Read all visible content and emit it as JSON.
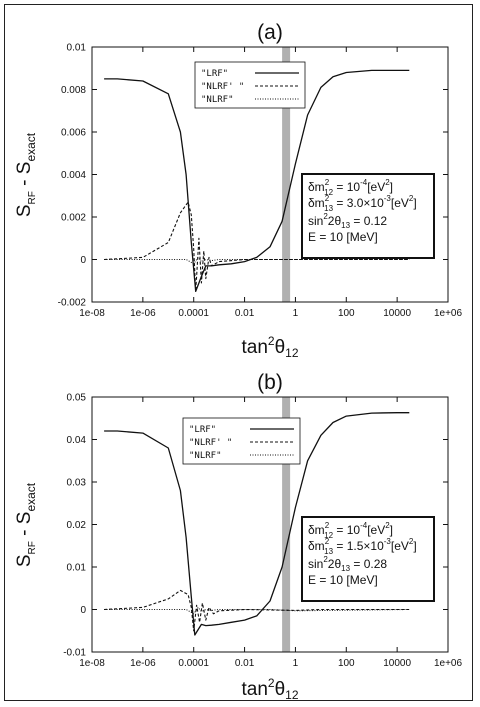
{
  "chart_data": [
    {
      "type": "line",
      "title": "(a)",
      "xlabel_main": "tan",
      "xlabel_sup": "2",
      "xlabel_theta": "θ",
      "xlabel_sub": "12",
      "ylabel_main": "S",
      "ylabel_sub1": "RF",
      "ylabel_mid": " - S",
      "ylabel_sub2": "exact",
      "xscale": "log",
      "xlim": [
        1e-08,
        1000000.0
      ],
      "ylim": [
        -0.002,
        0.01
      ],
      "xticks": [
        "1e-08",
        "1e-06",
        "0.0001",
        "0.01",
        "1",
        "100",
        "10000",
        "1e+06"
      ],
      "yticks": [
        "-0.002",
        "0",
        "0.002",
        "0.004",
        "0.006",
        "0.008",
        "0.01"
      ],
      "legend_position": "top-center",
      "vband_x": 0.43,
      "series": [
        {
          "name": "\"LRF\"",
          "style": "solid",
          "x": [
            3e-08,
            1e-07,
            1e-06,
            1e-05,
            3e-05,
            5e-05,
            8e-05,
            0.00012,
            0.0002,
            0.0003,
            0.0005,
            0.001,
            0.003,
            0.01,
            0.03,
            0.1,
            0.3,
            1,
            3,
            10,
            30,
            100,
            1000,
            10000,
            30000
          ],
          "y": [
            0.0085,
            0.0085,
            0.0084,
            0.0078,
            0.006,
            0.004,
            0.0008,
            -0.0015,
            -0.0008,
            -0.0003,
            -0.0003,
            -0.00025,
            -0.0002,
            -0.0001,
            0.0001,
            0.0006,
            0.0018,
            0.0045,
            0.0068,
            0.0081,
            0.0086,
            0.0088,
            0.0089,
            0.0089,
            0.0089
          ]
        },
        {
          "name": "\"NLRF' \"",
          "style": "dashed",
          "x": [
            3e-08,
            1e-06,
            1e-05,
            3e-05,
            6e-05,
            8e-05,
            0.0001,
            0.00012,
            0.00016,
            0.0002,
            0.00025,
            0.0003,
            0.0004,
            0.0005,
            0.001,
            0.01,
            1,
            10,
            30000
          ],
          "y": [
            0.0,
            0.0001,
            0.0008,
            0.0022,
            0.0027,
            0.0021,
            0.0005,
            -0.0015,
            0.001,
            -0.0011,
            0.0004,
            -0.0009,
            0.0001,
            -0.0003,
            -0.0001,
            0.0,
            0.0,
            0.0,
            0.0
          ]
        },
        {
          "name": "\"NLRF\"",
          "style": "dotted",
          "x": [
            3e-08,
            1e-05,
            5e-05,
            0.0001,
            0.00015,
            0.0002,
            0.0003,
            0.0005,
            0.001,
            0.1,
            30000
          ],
          "y": [
            0.0,
            0.0,
            0.0,
            -0.0002,
            0.0001,
            -0.0001,
            0.0,
            -5e-05,
            0.0,
            0.0,
            0.0
          ]
        }
      ],
      "params": {
        "dm12_lhs": "δm",
        "dm12_sup": "2",
        "dm12_sub": "12",
        "dm12_rhs": " = 10",
        "dm12_exp": "-4",
        "dm12_unit": "[eV",
        "dm12_unit_sup": "2",
        "dm12_close": "]",
        "dm13_lhs": "δm",
        "dm13_sup": "2",
        "dm13_sub": "13",
        "dm13_rhs": " = 3.0×10",
        "dm13_exp": "-3",
        "dm13_unit": "[eV",
        "dm13_unit_sup": "2",
        "dm13_close": "]",
        "sin_lhs": "sin",
        "sin_sup": "2",
        "sin_mid": "2θ",
        "sin_sub": "13",
        "sin_rhs": " =  0.12",
        "energy": "E = 10 [MeV]"
      }
    },
    {
      "type": "line",
      "title": "(b)",
      "xlabel_main": "tan",
      "xlabel_sup": "2",
      "xlabel_theta": "θ",
      "xlabel_sub": "12",
      "ylabel_main": "S",
      "ylabel_sub1": "RF",
      "ylabel_mid": " - S",
      "ylabel_sub2": "exact",
      "xscale": "log",
      "xlim": [
        1e-08,
        1000000.0
      ],
      "ylim": [
        -0.01,
        0.05
      ],
      "xticks": [
        "1e-08",
        "1e-06",
        "0.0001",
        "0.01",
        "1",
        "100",
        "10000",
        "1e+06"
      ],
      "yticks": [
        "-0.01",
        "0",
        "0.01",
        "0.02",
        "0.03",
        "0.04",
        "0.05"
      ],
      "legend_position": "top-center",
      "vband_x": 0.43,
      "series": [
        {
          "name": "\"LRF\"",
          "style": "solid",
          "x": [
            3e-08,
            1e-07,
            1e-06,
            1e-05,
            3e-05,
            5e-05,
            8e-05,
            0.00011,
            0.0002,
            0.0003,
            0.0005,
            0.001,
            0.003,
            0.01,
            0.03,
            0.1,
            0.3,
            1,
            3,
            10,
            30,
            100,
            1000,
            10000,
            30000
          ],
          "y": [
            0.042,
            0.042,
            0.0415,
            0.038,
            0.028,
            0.017,
            0.003,
            -0.006,
            -0.0035,
            -0.0038,
            -0.0037,
            -0.0035,
            -0.003,
            -0.0025,
            -0.0015,
            0.002,
            0.01,
            0.024,
            0.035,
            0.041,
            0.044,
            0.0455,
            0.0462,
            0.0463,
            0.0463
          ]
        },
        {
          "name": "\"NLRF' \"",
          "style": "dashed",
          "x": [
            3e-08,
            1e-06,
            1e-05,
            3e-05,
            6e-05,
            8e-05,
            0.0001,
            0.00013,
            0.00017,
            0.00022,
            0.0003,
            0.0004,
            0.0006,
            0.001,
            0.01,
            1,
            10,
            30000
          ],
          "y": [
            0.0,
            0.0005,
            0.0025,
            0.0045,
            0.0035,
            0.0005,
            -0.005,
            0.001,
            -0.003,
            0.0015,
            -0.0025,
            0.0005,
            -0.001,
            -0.0003,
            0.0,
            -0.0002,
            0.0,
            0.0
          ]
        },
        {
          "name": "\"NLRF\"",
          "style": "dotted",
          "x": [
            3e-08,
            1e-05,
            5e-05,
            0.0001,
            0.00015,
            0.0002,
            0.0003,
            0.0005,
            0.001,
            0.1,
            1,
            30000
          ],
          "y": [
            0.0,
            0.0,
            0.0,
            -0.001,
            0.0005,
            -0.0005,
            0.0,
            -0.0002,
            0.0,
            0.0,
            -0.0003,
            0.0
          ]
        }
      ],
      "params": {
        "dm12_lhs": "δm",
        "dm12_sup": "2",
        "dm12_sub": "12",
        "dm12_rhs": " = 10",
        "dm12_exp": "-4",
        "dm12_unit": "[eV",
        "dm12_unit_sup": "2",
        "dm12_close": "]",
        "dm13_lhs": "δm",
        "dm13_sup": "2",
        "dm13_sub": "13",
        "dm13_rhs": " = 1.5×10",
        "dm13_exp": "-3",
        "dm13_unit": "[eV",
        "dm13_unit_sup": "2",
        "dm13_close": "]",
        "sin_lhs": "sin",
        "sin_sup": "2",
        "sin_mid": "2θ",
        "sin_sub": "13",
        "sin_rhs": " =  0.28",
        "energy": "E = 10 [MeV]"
      }
    }
  ]
}
